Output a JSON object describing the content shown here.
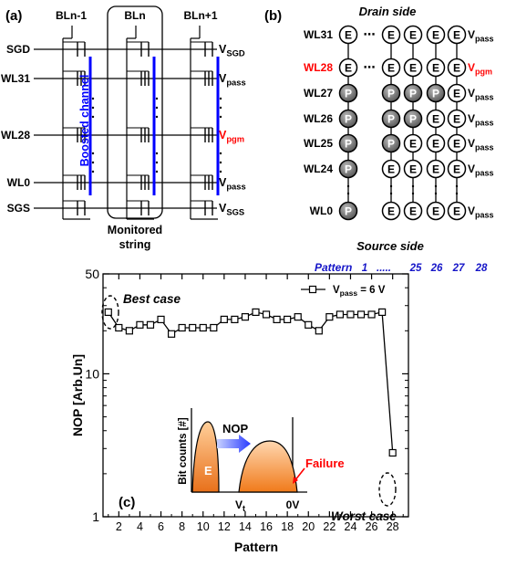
{
  "panel_a": {
    "label": "(a)",
    "bitlines": [
      "BLn-1",
      "BLn",
      "BLn+1"
    ],
    "rows": [
      "SGD",
      "WL31",
      "WL28",
      "WL0",
      "SGS"
    ],
    "voltages": [
      {
        "main": "V",
        "sub": "SGD"
      },
      {
        "main": "V",
        "sub": "pass"
      },
      {
        "main": "V",
        "sub": "pgm"
      },
      {
        "main": "V",
        "sub": "pass"
      },
      {
        "main": "V",
        "sub": "SGS"
      }
    ],
    "boosted_channel": "Boosted channel",
    "monitored_line1": "Monitored",
    "monitored_line2": "string",
    "colors": {
      "pgm": "#ff0000",
      "channel": "#0000ff"
    }
  },
  "panel_b": {
    "label": "(b)",
    "drain_side": "Drain side",
    "source_side": "Source side",
    "rows": [
      "WL31",
      "WL28",
      "WL27",
      "WL26",
      "WL25",
      "WL24",
      "WL0"
    ],
    "voltages": [
      {
        "main": "V",
        "sub": "pass"
      },
      {
        "main": "V",
        "sub": "pgm"
      },
      {
        "main": "V",
        "sub": "pass"
      },
      {
        "main": "V",
        "sub": "pass"
      },
      {
        "main": "V",
        "sub": "pass"
      },
      {
        "main": "V",
        "sub": "pass"
      },
      {
        "main": "V",
        "sub": "pass"
      }
    ],
    "erased": "E",
    "programmed": "P",
    "dots": "⋯",
    "pattern_label": "Pattern",
    "pattern_values": [
      "1",
      ".....",
      "25",
      "26",
      "27",
      "28"
    ],
    "colors": {
      "highlight": "#ff0000",
      "pattern": "#1515c8",
      "programmed_fill": "#7a7a7a"
    }
  },
  "panel_c": {
    "label": "(c)",
    "best_case": "Best case",
    "worst_case": "Worst case",
    "inset": {
      "ylabel": "Bit counts [#]",
      "erased_label": "E",
      "nop_label": "NOP",
      "failure_label": "Failure",
      "x_label_vt": "V",
      "x_label_vt_sub": "t",
      "x_label_0v": "0V"
    }
  },
  "chart_data": {
    "type": "line",
    "xlabel": "Pattern",
    "ylabel": "NOP [Arb.Un]",
    "yscale": "log",
    "ylim": [
      1,
      50
    ],
    "xlim": [
      0.5,
      29.5
    ],
    "xticks": [
      "2",
      "4",
      "6",
      "8",
      "10",
      "12",
      "14",
      "16",
      "18",
      "20",
      "22",
      "24",
      "26",
      "28"
    ],
    "yticks": [
      "1",
      "10",
      "50"
    ],
    "grid": false,
    "legend": {
      "position": "top-right",
      "main": "V",
      "sub": "pass",
      "suffix": " = 6 V"
    },
    "series": [
      {
        "x": [
          1,
          2,
          3,
          4,
          5,
          6,
          7,
          8,
          9,
          10,
          11,
          12,
          13,
          14,
          15,
          16,
          17,
          18,
          19,
          20,
          21,
          22,
          23,
          24,
          25,
          26,
          27,
          28
        ],
        "values": [
          27,
          21,
          20,
          22,
          22,
          24,
          19,
          21,
          21,
          21,
          21,
          24,
          24,
          25,
          27,
          26,
          24,
          24,
          25,
          22,
          20,
          25,
          26,
          26,
          26,
          26,
          27,
          2.8
        ]
      }
    ]
  }
}
